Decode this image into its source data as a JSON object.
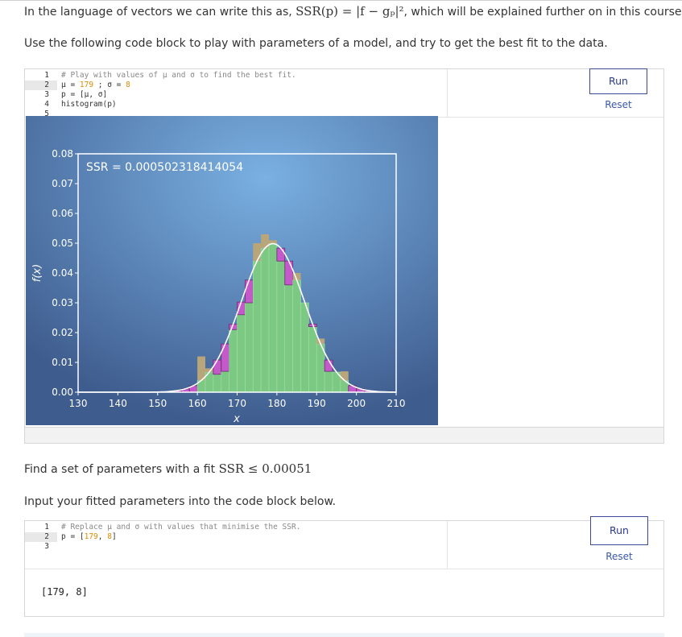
{
  "intro": {
    "prefix": "In the language of vectors we can write this as,",
    "formula": "SSR(p) = |f − gₚ|²",
    "suffix": ", which will be explained further on in this course."
  },
  "instruction_1": "Use the following code block to play with parameters of a model, and try to get the best fit to the data.",
  "cell_1": {
    "lines": [
      {
        "n": "1",
        "comment": "# Play with values of μ and σ to find the best fit."
      },
      {
        "n": "2",
        "pre": "μ = ",
        "a": "179",
        "mid": " ; σ = ",
        "b": "8"
      },
      {
        "n": "3",
        "text": "p = [μ, σ]"
      },
      {
        "n": "4",
        "text": "histogram(p)"
      },
      {
        "n": "5",
        "text": ""
      }
    ],
    "run_label": "Run",
    "reset_label": "Reset"
  },
  "chart_data": {
    "type": "bar",
    "annotation": "SSR = 0.000502318414054",
    "xlabel": "x",
    "ylabel": "f(x)",
    "xlim": [
      130,
      210
    ],
    "ylim": [
      0,
      0.08
    ],
    "xticks": [
      "130",
      "140",
      "150",
      "160",
      "170",
      "180",
      "190",
      "200",
      "210"
    ],
    "yticks": [
      "0.00",
      "0.01",
      "0.02",
      "0.03",
      "0.04",
      "0.05",
      "0.06",
      "0.07",
      "0.08"
    ],
    "bin_width": 2,
    "bin_left_edges": [
      154,
      156,
      158,
      160,
      162,
      164,
      166,
      168,
      170,
      172,
      174,
      176,
      178,
      180,
      182,
      184,
      186,
      188,
      190,
      192,
      194,
      196,
      198,
      200,
      202
    ],
    "data_values": [
      0,
      0,
      0,
      0.012,
      0.008,
      0.006,
      0.007,
      0.021,
      0.026,
      0.03,
      0.05,
      0.053,
      0.051,
      0.044,
      0.036,
      0.04,
      0.03,
      0.022,
      0.018,
      0.007,
      0.007,
      0.007,
      0,
      0,
      0
    ],
    "model": {
      "mu": 179,
      "sigma": 8
    },
    "colors": {
      "data_bar": "#b8a67a",
      "overlap": "#7cc983",
      "model_excess": "#c45ac9",
      "curve": "#ffffff",
      "background_inner": "#78a9de",
      "background_outer": "#3f5c8e"
    }
  },
  "instruction_2": {
    "prefix": "Find a set of parameters with a fit",
    "formula": "SSR ≤ 0.00051"
  },
  "instruction_3": "Input your fitted parameters into the code block below.",
  "cell_2": {
    "lines": [
      {
        "n": "1",
        "comment": "# Replace μ and σ with values that minimise the SSR."
      },
      {
        "n": "2",
        "pre": "p = [",
        "a": "179",
        "mid": ", ",
        "b": "8",
        "post": "]"
      },
      {
        "n": "3",
        "text": ""
      }
    ],
    "run_label": "Run",
    "reset_label": "Reset",
    "output": "[179, 8]"
  }
}
